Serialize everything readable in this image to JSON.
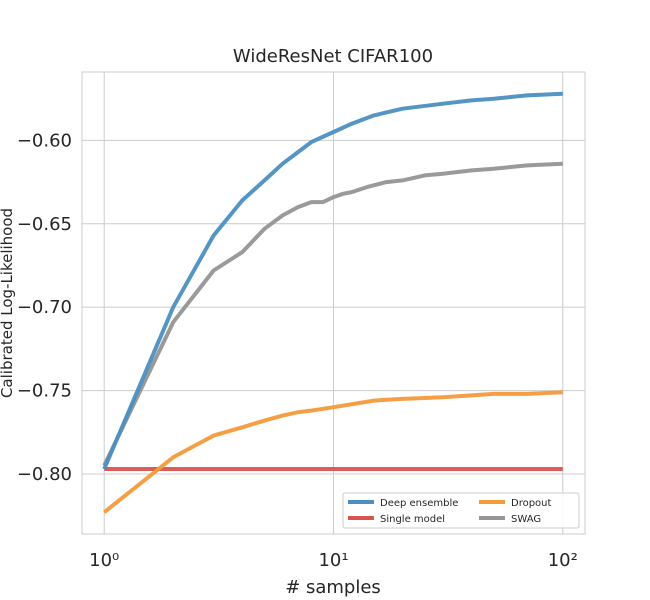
{
  "chart_data": {
    "type": "line",
    "title": "WideResNet CIFAR100",
    "xlabel": "# samples",
    "ylabel": "Calibrated Log-Likelihood",
    "x_scale": "log",
    "xlim": [
      0.8,
      125
    ],
    "ylim": [
      -0.836,
      -0.559
    ],
    "x_ticks": [
      {
        "value": 1,
        "label": "10⁰"
      },
      {
        "value": 10,
        "label": "10¹"
      },
      {
        "value": 100,
        "label": "10²"
      }
    ],
    "y_ticks": [
      {
        "value": -0.6,
        "label": "−0.60"
      },
      {
        "value": -0.65,
        "label": "−0.65"
      },
      {
        "value": -0.7,
        "label": "−0.70"
      },
      {
        "value": -0.75,
        "label": "−0.75"
      },
      {
        "value": -0.8,
        "label": "−0.80"
      }
    ],
    "grid": true,
    "legend_position": "lower right",
    "series": [
      {
        "name": "Deep ensemble",
        "color": "#4c8fc0",
        "x": [
          1,
          2,
          3,
          4,
          5,
          6,
          7,
          8,
          10,
          12,
          15,
          20,
          30,
          40,
          50,
          70,
          100
        ],
        "y": [
          -0.797,
          -0.7,
          -0.657,
          -0.636,
          -0.624,
          -0.614,
          -0.607,
          -0.601,
          -0.595,
          -0.59,
          -0.585,
          -0.581,
          -0.578,
          -0.576,
          -0.575,
          -0.573,
          -0.572
        ]
      },
      {
        "name": "Dropout",
        "color": "#f39a3b",
        "x": [
          1,
          2,
          3,
          4,
          5,
          6,
          7,
          8,
          10,
          15,
          20,
          30,
          50,
          70,
          100
        ],
        "y": [
          -0.823,
          -0.79,
          -0.777,
          -0.772,
          -0.768,
          -0.765,
          -0.763,
          -0.762,
          -0.76,
          -0.756,
          -0.755,
          -0.754,
          -0.752,
          -0.752,
          -0.751
        ]
      },
      {
        "name": "Single model",
        "color": "#d9534f",
        "x": [
          1,
          100
        ],
        "y": [
          -0.797,
          -0.797
        ]
      },
      {
        "name": "SWAG",
        "color": "#959595",
        "x": [
          1,
          2,
          3,
          4,
          5,
          6,
          7,
          8,
          9,
          10,
          11,
          12,
          14,
          17,
          20,
          25,
          30,
          40,
          50,
          70,
          100
        ],
        "y": [
          -0.795,
          -0.709,
          -0.678,
          -0.667,
          -0.653,
          -0.645,
          -0.64,
          -0.637,
          -0.637,
          -0.634,
          -0.632,
          -0.631,
          -0.628,
          -0.625,
          -0.624,
          -0.621,
          -0.62,
          -0.618,
          -0.617,
          -0.615,
          -0.614
        ]
      }
    ]
  }
}
